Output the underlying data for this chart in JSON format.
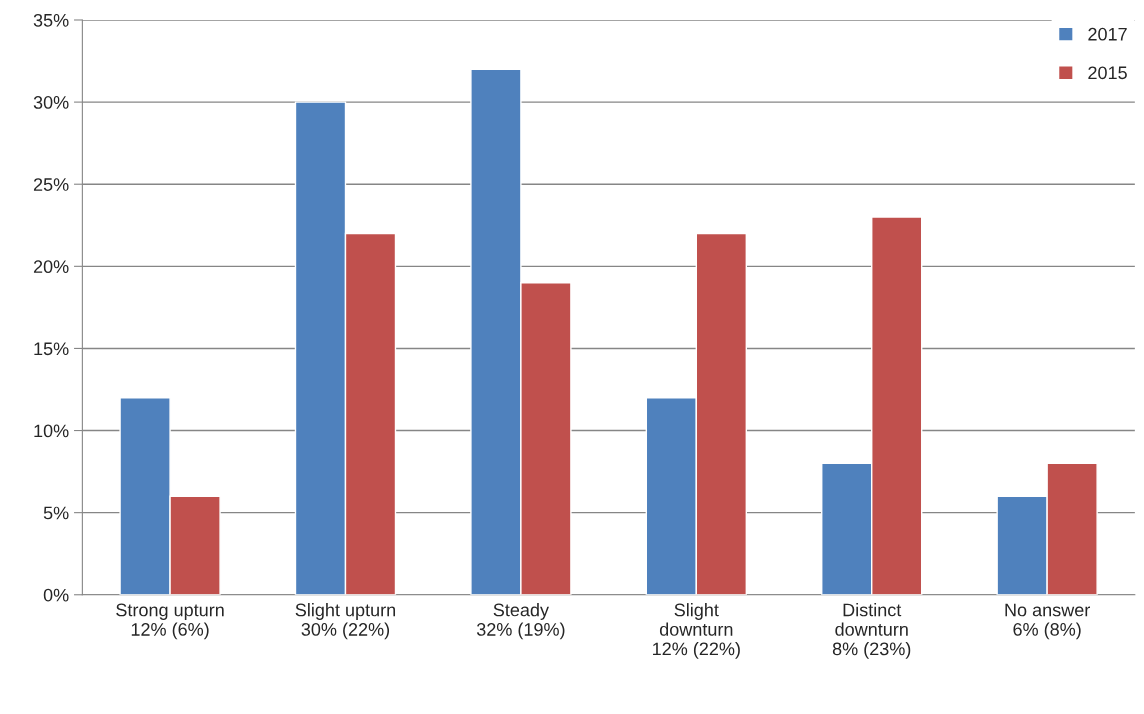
{
  "chart_data": {
    "type": "bar",
    "categories": [
      "Strong upturn\n12% (6%)",
      "Slight upturn\n30% (22%)",
      "Steady\n32% (19%)",
      "Slight\ndownturn\n12% (22%)",
      "Distinct\ndownturn\n8% (23%)",
      "No answer\n6% (8%)"
    ],
    "series": [
      {
        "name": "2017",
        "color": "#4f81bd",
        "values": [
          12,
          30,
          32,
          12,
          8,
          6
        ]
      },
      {
        "name": "2015",
        "color": "#c0504d",
        "values": [
          6,
          22,
          19,
          22,
          23,
          8
        ]
      }
    ],
    "ylim": [
      0,
      35
    ],
    "yticks": [
      {
        "value": 0,
        "label": "0%"
      },
      {
        "value": 5,
        "label": "5%"
      },
      {
        "value": 10,
        "label": "10%"
      },
      {
        "value": 15,
        "label": "15%"
      },
      {
        "value": 20,
        "label": "20%"
      },
      {
        "value": 25,
        "label": "25%"
      },
      {
        "value": 30,
        "label": "30%"
      },
      {
        "value": 35,
        "label": "35%"
      }
    ],
    "grid": "y",
    "legend": "top right"
  }
}
